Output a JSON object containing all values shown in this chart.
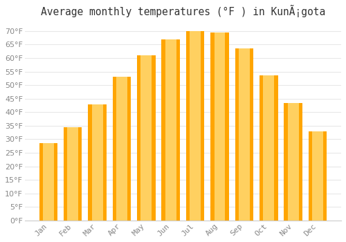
{
  "title": "Average monthly temperatures (°F ) in KunÃ¡gota",
  "months": [
    "Jan",
    "Feb",
    "Mar",
    "Apr",
    "May",
    "Jun",
    "Jul",
    "Aug",
    "Sep",
    "Oct",
    "Nov",
    "Dec"
  ],
  "values": [
    28.5,
    34.5,
    43.0,
    53.0,
    61.0,
    67.0,
    70.0,
    69.5,
    63.5,
    53.5,
    43.5,
    33.0
  ],
  "bar_color_main": "#FFA500",
  "bar_color_light": "#FFD060",
  "background_color": "#FFFFFF",
  "grid_color": "#E8E8E8",
  "text_color": "#888888",
  "title_color": "#333333",
  "ylim": [
    0,
    73
  ],
  "yticks": [
    0,
    5,
    10,
    15,
    20,
    25,
    30,
    35,
    40,
    45,
    50,
    55,
    60,
    65,
    70
  ],
  "title_fontsize": 10.5,
  "tick_fontsize": 8
}
